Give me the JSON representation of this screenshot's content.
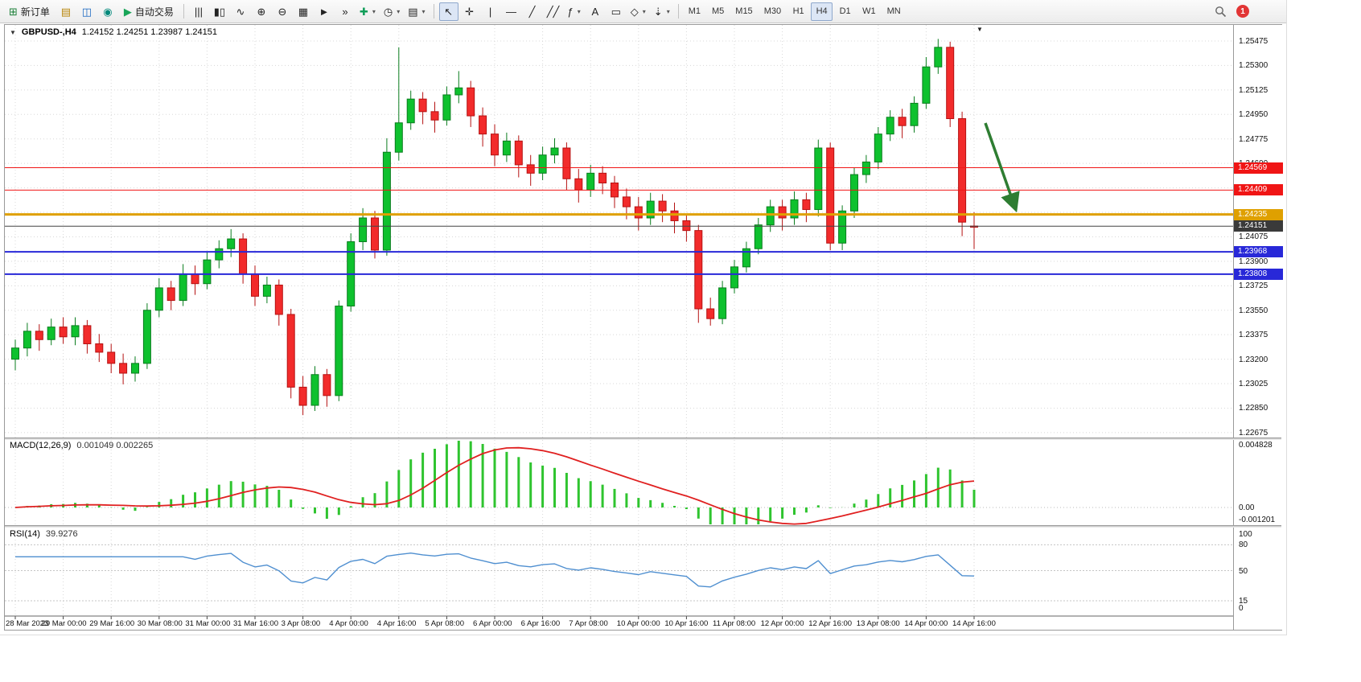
{
  "toolbar": {
    "new_order": {
      "label": "新订单",
      "glyph": "⊞"
    },
    "system_icons": [
      {
        "name": "charts-icon",
        "glyph": "▤",
        "color": "#b8860b"
      },
      {
        "name": "profiles-icon",
        "glyph": "◫",
        "color": "#1565c0"
      },
      {
        "name": "data-window-icon",
        "glyph": "◉",
        "color": "#00897b"
      }
    ],
    "autotrading": {
      "label": "自动交易",
      "glyph": "▶"
    },
    "chart_tools": [
      {
        "name": "bar-chart-icon",
        "glyph": "|||"
      },
      {
        "name": "candlestick-chart-icon",
        "glyph": "▮▯"
      },
      {
        "name": "line-chart-icon",
        "glyph": "∿"
      },
      {
        "name": "zoom-in-icon",
        "glyph": "⊕"
      },
      {
        "name": "zoom-out-icon",
        "glyph": "⊖"
      },
      {
        "name": "tile-windows-icon",
        "glyph": "▦"
      },
      {
        "name": "auto-scroll-icon",
        "glyph": "►"
      },
      {
        "name": "chart-shift-icon",
        "glyph": "»"
      },
      {
        "name": "indicators-icon",
        "glyph": "✚",
        "color": "#0f9d58",
        "caret": true
      },
      {
        "name": "periods-icon",
        "glyph": "◷",
        "caret": true
      },
      {
        "name": "templates-icon",
        "glyph": "▤",
        "caret": true
      }
    ],
    "line_tools": [
      {
        "name": "cursor-icon",
        "glyph": "↖",
        "pressed": true
      },
      {
        "name": "crosshair-icon",
        "glyph": "✛"
      },
      {
        "name": "vertical-line-icon",
        "glyph": "|"
      },
      {
        "name": "horizontal-line-icon",
        "glyph": "—"
      },
      {
        "name": "trendline-icon",
        "glyph": "╱"
      },
      {
        "name": "channel-icon",
        "glyph": "╱╱"
      },
      {
        "name": "fibonacci-icon",
        "glyph": "ƒ",
        "caret": true
      },
      {
        "name": "text-icon",
        "glyph": "A"
      },
      {
        "name": "text-label-icon",
        "glyph": "▭"
      },
      {
        "name": "shapes-icon",
        "glyph": "◇",
        "caret": true
      },
      {
        "name": "arrows-icon",
        "glyph": "⇣",
        "caret": true
      }
    ],
    "caret_glyph": "▾",
    "timeframes": [
      "M1",
      "M5",
      "M15",
      "M30",
      "H1",
      "H4",
      "D1",
      "W1",
      "MN"
    ],
    "active_timeframe": "H4",
    "notification_badge": "1"
  },
  "header": {
    "menu_glyph": "▼",
    "symbol_period": "GBPUSD-,H4",
    "ohlc": "1.24152 1.24251 1.23987 1.24151",
    "shift_marker_glyph": "▼"
  },
  "macd_panel": {
    "label": "MACD(12,26,9)",
    "values": "0.001049 0.002265"
  },
  "rsi_panel": {
    "label": "RSI(14)",
    "value": "39.9276"
  },
  "chart_data": {
    "type": "candlestick",
    "symbol": "GBPUSD-",
    "timeframe": "H4",
    "ohlc_current": {
      "open": 1.24152,
      "high": 1.24251,
      "low": 1.23987,
      "close": 1.24151
    },
    "price_axis": [
      "1.25475",
      "1.25300",
      "1.25125",
      "1.24950",
      "1.24775",
      "1.24600",
      "1.24425",
      "1.24250",
      "1.24075",
      "1.23900",
      "1.23725",
      "1.23550",
      "1.23375",
      "1.23200",
      "1.23025",
      "1.22850",
      "1.22675"
    ],
    "time_labels": [
      "28 Mar 2023",
      "29 Mar 00:00",
      "29 Mar 16:00",
      "30 Mar 08:00",
      "31 Mar 00:00",
      "31 Mar 16:00",
      "3 Apr 08:00",
      "4 Apr 00:00",
      "4 Apr 16:00",
      "5 Apr 08:00",
      "6 Apr 00:00",
      "6 Apr 16:00",
      "7 Apr 08:00",
      "10 Apr 00:00",
      "10 Apr 16:00",
      "11 Apr 08:00",
      "12 Apr 00:00",
      "12 Apr 16:00",
      "13 Apr 08:00",
      "14 Apr 00:00",
      "14 Apr 16:00"
    ],
    "candles": [
      [
        1.232,
        1.2334,
        1.2312,
        1.2328
      ],
      [
        1.2328,
        1.2346,
        1.2322,
        1.234
      ],
      [
        1.234,
        1.2345,
        1.2326,
        1.2334
      ],
      [
        1.2334,
        1.2349,
        1.233,
        1.2343
      ],
      [
        1.2343,
        1.235,
        1.2331,
        1.2336
      ],
      [
        1.2336,
        1.235,
        1.233,
        1.2344
      ],
      [
        1.2344,
        1.2348,
        1.2324,
        1.2331
      ],
      [
        1.2331,
        1.2338,
        1.2318,
        1.2325
      ],
      [
        1.2325,
        1.2331,
        1.231,
        1.2317
      ],
      [
        1.2317,
        1.2324,
        1.2302,
        1.231
      ],
      [
        1.231,
        1.2322,
        1.2304,
        1.2317
      ],
      [
        1.2317,
        1.236,
        1.2313,
        1.2355
      ],
      [
        1.2355,
        1.2378,
        1.235,
        1.2371
      ],
      [
        1.2371,
        1.2376,
        1.2355,
        1.2362
      ],
      [
        1.2362,
        1.2388,
        1.2358,
        1.2381
      ],
      [
        1.2381,
        1.2387,
        1.2366,
        1.2374
      ],
      [
        1.2374,
        1.2397,
        1.237,
        1.2391
      ],
      [
        1.2391,
        1.2405,
        1.2385,
        1.2399
      ],
      [
        1.2399,
        1.2413,
        1.2393,
        1.2406
      ],
      [
        1.2406,
        1.241,
        1.2374,
        1.2381
      ],
      [
        1.2381,
        1.2387,
        1.2358,
        1.2365
      ],
      [
        1.2365,
        1.2379,
        1.236,
        1.2373
      ],
      [
        1.2373,
        1.2377,
        1.2344,
        1.2352
      ],
      [
        1.2352,
        1.2356,
        1.2292,
        1.23
      ],
      [
        1.23,
        1.2308,
        1.228,
        1.2287
      ],
      [
        1.2287,
        1.2315,
        1.2283,
        1.2309
      ],
      [
        1.2309,
        1.2313,
        1.2286,
        1.2294
      ],
      [
        1.2294,
        1.2362,
        1.229,
        1.2358
      ],
      [
        1.2358,
        1.241,
        1.2354,
        1.2404
      ],
      [
        1.2404,
        1.2428,
        1.2398,
        1.2421
      ],
      [
        1.2421,
        1.2426,
        1.2392,
        1.2398
      ],
      [
        1.2398,
        1.2478,
        1.2394,
        1.2468
      ],
      [
        1.2468,
        1.2543,
        1.2462,
        1.2489
      ],
      [
        1.2489,
        1.2512,
        1.2484,
        1.2506
      ],
      [
        1.2506,
        1.2511,
        1.2488,
        1.2497
      ],
      [
        1.2497,
        1.2504,
        1.2482,
        1.2491
      ],
      [
        1.2491,
        1.2515,
        1.2487,
        1.2509
      ],
      [
        1.2509,
        1.2526,
        1.2503,
        1.2514
      ],
      [
        1.2514,
        1.2519,
        1.2486,
        1.2494
      ],
      [
        1.2494,
        1.25,
        1.2472,
        1.2481
      ],
      [
        1.2481,
        1.2488,
        1.2458,
        1.2466
      ],
      [
        1.2466,
        1.2482,
        1.2461,
        1.2476
      ],
      [
        1.2476,
        1.248,
        1.245,
        1.2459
      ],
      [
        1.2459,
        1.2466,
        1.2444,
        1.2453
      ],
      [
        1.2453,
        1.2472,
        1.2448,
        1.2466
      ],
      [
        1.2466,
        1.2478,
        1.246,
        1.2471
      ],
      [
        1.2471,
        1.2475,
        1.2441,
        1.2449
      ],
      [
        1.2449,
        1.2456,
        1.2432,
        1.2441
      ],
      [
        1.2441,
        1.2459,
        1.2436,
        1.2453
      ],
      [
        1.2453,
        1.2458,
        1.2438,
        1.2446
      ],
      [
        1.2446,
        1.2451,
        1.2428,
        1.2436
      ],
      [
        1.2436,
        1.2442,
        1.242,
        1.2429
      ],
      [
        1.2429,
        1.2436,
        1.2412,
        1.2421
      ],
      [
        1.2421,
        1.2439,
        1.2416,
        1.2433
      ],
      [
        1.2433,
        1.2438,
        1.2418,
        1.2426
      ],
      [
        1.2426,
        1.2432,
        1.241,
        1.2419
      ],
      [
        1.2419,
        1.2424,
        1.2404,
        1.2412
      ],
      [
        1.2412,
        1.2416,
        1.2346,
        1.2356
      ],
      [
        1.2356,
        1.2364,
        1.2344,
        1.2349
      ],
      [
        1.2349,
        1.2376,
        1.2345,
        1.2371
      ],
      [
        1.2371,
        1.2391,
        1.2367,
        1.2386
      ],
      [
        1.2386,
        1.2404,
        1.2382,
        1.2399
      ],
      [
        1.2399,
        1.2421,
        1.2395,
        1.2416
      ],
      [
        1.2416,
        1.2434,
        1.2411,
        1.2429
      ],
      [
        1.2429,
        1.2434,
        1.2412,
        1.2421
      ],
      [
        1.2421,
        1.244,
        1.2416,
        1.2434
      ],
      [
        1.2434,
        1.2439,
        1.2418,
        1.2427
      ],
      [
        1.2427,
        1.2477,
        1.2422,
        1.2471
      ],
      [
        1.2471,
        1.2475,
        1.2398,
        1.2403
      ],
      [
        1.2403,
        1.243,
        1.2398,
        1.2426
      ],
      [
        1.2426,
        1.2457,
        1.2421,
        1.2452
      ],
      [
        1.2452,
        1.2466,
        1.2446,
        1.2461
      ],
      [
        1.2461,
        1.2486,
        1.2456,
        1.2481
      ],
      [
        1.2481,
        1.2498,
        1.2476,
        1.2493
      ],
      [
        1.2493,
        1.2499,
        1.2478,
        1.2487
      ],
      [
        1.2487,
        1.2508,
        1.2482,
        1.2503
      ],
      [
        1.2503,
        1.2536,
        1.2499,
        1.2529
      ],
      [
        1.2529,
        1.2549,
        1.2524,
        1.2543
      ],
      [
        1.2543,
        1.2547,
        1.2486,
        1.2492
      ],
      [
        1.2492,
        1.2497,
        1.2408,
        1.2418
      ],
      [
        1.24152,
        1.24251,
        1.23987,
        1.24151
      ]
    ],
    "h_lines": [
      {
        "name": "resistance-1",
        "label": "1.24569",
        "price": 1.24569,
        "color": "#f01515",
        "width": 1
      },
      {
        "name": "resistance-2",
        "label": "1.24409",
        "price": 1.24409,
        "color": "#f01515",
        "width": 1
      },
      {
        "name": "pivot",
        "label": "1.24235",
        "price": 1.24235,
        "color": "#dfa000",
        "width": 3
      },
      {
        "name": "support-1",
        "label": "1.23968",
        "price": 1.23968,
        "color": "#2828d8",
        "width": 2
      },
      {
        "name": "support-2",
        "label": "1.23808",
        "price": 1.23808,
        "color": "#2828d8",
        "width": 2
      }
    ],
    "current_price": {
      "label": "1.24151",
      "price": 1.24151,
      "color": "#3a3a3a"
    },
    "macd": {
      "params": "12,26,9",
      "main": 0.001049,
      "signal": 0.002265,
      "axis": [
        "0.004828",
        "0.00",
        "-0.001201"
      ]
    },
    "rsi": {
      "period": 14,
      "value": 39.9276,
      "levels": [
        {
          "label": "100",
          "value": 100
        },
        {
          "label": "80",
          "value": 80
        },
        {
          "label": "50",
          "value": 50
        },
        {
          "label": "15",
          "value": 15
        },
        {
          "label": "0",
          "value": 0
        }
      ]
    },
    "annotation": {
      "type": "arrow",
      "direction": "down",
      "color": "#2e7d32"
    },
    "colors": {
      "bull": "#0ec12e",
      "bull_border": "#0a7d1e",
      "bear": "#f22b2b",
      "bear_border": "#b51212",
      "macd_histogram": "#2fc42f",
      "macd_signal": "#e02020",
      "rsi_line": "#4f8fd0"
    }
  }
}
